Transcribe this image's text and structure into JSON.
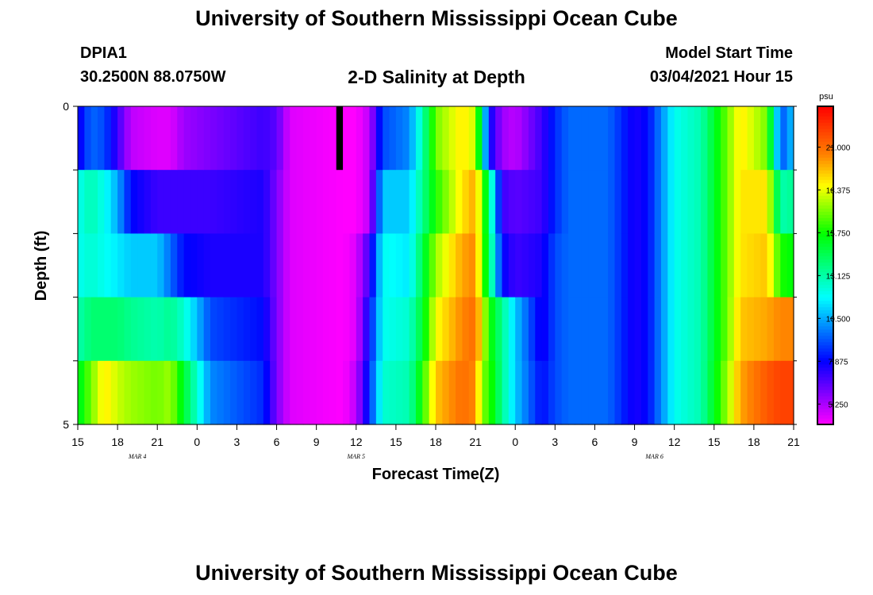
{
  "header": {
    "title": "University of Southern Mississippi Ocean Cube",
    "station": "DPIA1",
    "coords": "30.2500N 88.0750W",
    "subtitle": "2-D Salinity at Depth",
    "start_label": "Model Start Time",
    "start_value": "03/04/2021 Hour 15"
  },
  "footer": {
    "title": "University of Southern Mississippi Ocean Cube"
  },
  "chart_data": {
    "type": "heatmap",
    "title": "2-D Salinity at Depth",
    "xlabel": "Forecast Time(Z)",
    "ylabel": "Depth (ft)",
    "x_ticks": [
      "15",
      "18",
      "21",
      "0",
      "3",
      "6",
      "9",
      "12",
      "15",
      "18",
      "21",
      "0",
      "3",
      "6",
      "9",
      "12",
      "15",
      "18",
      "21"
    ],
    "date_labels": [
      {
        "hour_index": 4.5,
        "label": "MAR 4"
      },
      {
        "hour_index": 21,
        "label": "MAR 5"
      },
      {
        "hour_index": 43.5,
        "label": "MAR 6"
      }
    ],
    "y_ticks": [
      "0",
      "5"
    ],
    "ylim": [
      0,
      5
    ],
    "x_range_hours": [
      0,
      54
    ],
    "depth_levels": 5,
    "colorbar": {
      "unit": "psu",
      "min": 4.0,
      "max": 23.5,
      "ticks": [
        "21.000",
        "18.375",
        "15.750",
        "13.125",
        "10.500",
        "7.875",
        "5.250"
      ],
      "tick_values": [
        21.0,
        18.375,
        15.75,
        13.125,
        10.5,
        7.875,
        5.25
      ]
    },
    "columns_per_hour": 2,
    "salinity_keyframes": [
      {
        "t": 0,
        "values": [
          7.5,
          12.0,
          12.0,
          13.0,
          15.0
        ]
      },
      {
        "t": 1,
        "values": [
          9.5,
          13.0,
          12.5,
          14.0,
          17.0
        ]
      },
      {
        "t": 2,
        "values": [
          9.0,
          12.0,
          12.0,
          14.0,
          19.0
        ]
      },
      {
        "t": 3,
        "values": [
          7.0,
          10.5,
          11.5,
          14.0,
          18.0
        ]
      },
      {
        "t": 4,
        "values": [
          5.0,
          8.0,
          11.0,
          13.5,
          17.5
        ]
      },
      {
        "t": 6,
        "values": [
          4.5,
          7.0,
          11.0,
          13.0,
          17.0
        ]
      },
      {
        "t": 7,
        "values": [
          4.5,
          7.0,
          9.5,
          13.5,
          17.5
        ]
      },
      {
        "t": 8,
        "values": [
          5.5,
          7.0,
          8.0,
          12.5,
          15.0
        ]
      },
      {
        "t": 10,
        "values": [
          6.0,
          7.0,
          7.5,
          9.0,
          10.0
        ]
      },
      {
        "t": 14,
        "values": [
          7.0,
          7.5,
          7.5,
          8.0,
          8.5
        ]
      },
      {
        "t": 15,
        "values": [
          6.5,
          6.0,
          6.0,
          6.0,
          6.0
        ]
      },
      {
        "t": 16,
        "values": [
          4.5,
          4.5,
          4.5,
          4.5,
          4.5
        ]
      },
      {
        "t": 20,
        "values": [
          4.0,
          4.0,
          4.0,
          4.0,
          4.0
        ]
      },
      {
        "t": 21,
        "values": [
          4.0,
          4.0,
          4.5,
          4.5,
          5.0
        ]
      },
      {
        "t": 22,
        "values": [
          5.0,
          5.0,
          7.0,
          8.0,
          8.5
        ]
      },
      {
        "t": 23,
        "values": [
          9.0,
          11.0,
          12.0,
          12.0,
          12.5
        ]
      },
      {
        "t": 25,
        "values": [
          10.0,
          11.0,
          11.5,
          12.5,
          13.0
        ]
      },
      {
        "t": 26,
        "values": [
          13.0,
          13.5,
          14.5,
          15.0,
          16.0
        ]
      },
      {
        "t": 27,
        "values": [
          17.0,
          16.0,
          17.5,
          18.5,
          19.5
        ]
      },
      {
        "t": 29,
        "values": [
          19.0,
          19.0,
          20.0,
          20.5,
          21.0
        ]
      },
      {
        "t": 30,
        "values": [
          18.0,
          20.0,
          20.5,
          21.0,
          20.5
        ]
      },
      {
        "t": 30.5,
        "values": [
          13.0,
          17.0,
          17.0,
          18.5,
          17.0
        ]
      },
      {
        "t": 31,
        "values": [
          8.0,
          14.0,
          14.5,
          16.0,
          16.5
        ]
      },
      {
        "t": 32,
        "values": [
          5.5,
          7.0,
          8.0,
          13.5,
          13.5
        ]
      },
      {
        "t": 33,
        "values": [
          5.0,
          6.5,
          7.0,
          11.0,
          11.0
        ]
      },
      {
        "t": 35,
        "values": [
          7.0,
          7.0,
          7.5,
          7.5,
          8.0
        ]
      },
      {
        "t": 36,
        "values": [
          8.5,
          8.5,
          9.0,
          9.0,
          9.0
        ]
      },
      {
        "t": 37,
        "values": [
          9.5,
          9.5,
          9.5,
          9.5,
          9.5
        ]
      },
      {
        "t": 40,
        "values": [
          9.5,
          9.5,
          9.5,
          9.5,
          9.5
        ]
      },
      {
        "t": 42,
        "values": [
          7.5,
          7.5,
          7.5,
          7.5,
          7.5
        ]
      },
      {
        "t": 43,
        "values": [
          8.0,
          8.0,
          8.0,
          8.0,
          8.0
        ]
      },
      {
        "t": 45,
        "values": [
          12.0,
          12.0,
          12.0,
          12.0,
          12.0
        ]
      },
      {
        "t": 47,
        "values": [
          13.0,
          13.0,
          13.0,
          13.0,
          13.0
        ]
      },
      {
        "t": 49,
        "values": [
          17.0,
          17.0,
          17.0,
          17.0,
          17.5
        ]
      },
      {
        "t": 50,
        "values": [
          19.0,
          19.0,
          19.0,
          19.5,
          20.0
        ]
      },
      {
        "t": 52,
        "values": [
          17.0,
          19.0,
          19.5,
          20.0,
          21.5
        ]
      },
      {
        "t": 53,
        "values": [
          9.0,
          13.0,
          16.0,
          20.5,
          22.0
        ]
      },
      {
        "t": 54,
        "values": [
          11.0,
          13.5,
          15.5,
          20.5,
          22.0
        ]
      }
    ],
    "missing_cells": [
      {
        "t0": 19.5,
        "t1": 20.0,
        "depth_index": 0
      }
    ]
  }
}
